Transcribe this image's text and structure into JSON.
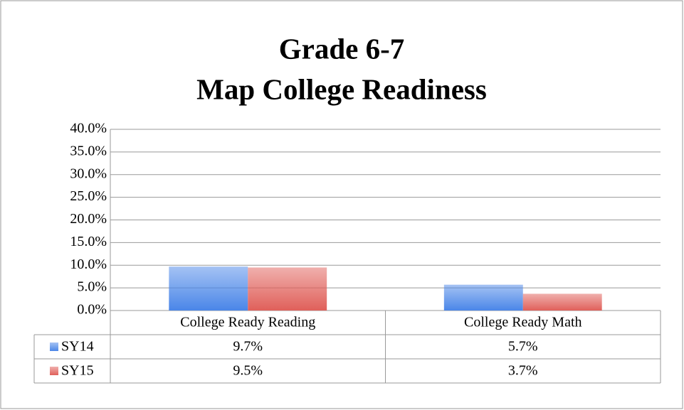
{
  "chart_data": {
    "type": "bar",
    "title": [
      "Grade 6-7",
      "Map College Readiness"
    ],
    "categories": [
      "College Ready Reading",
      "College Ready Math"
    ],
    "series": [
      {
        "name": "SY14",
        "color": "#4a86e8",
        "values": [
          9.7,
          5.7
        ],
        "value_labels": [
          "9.7%",
          "5.7%"
        ]
      },
      {
        "name": "SY15",
        "color": "#e0605a",
        "values": [
          9.5,
          3.7
        ],
        "value_labels": [
          "9.5%",
          "3.7%"
        ]
      }
    ],
    "ylim": [
      0,
      40
    ],
    "yticks": [
      {
        "value": 0,
        "label": "0.0%"
      },
      {
        "value": 5,
        "label": "5.0%"
      },
      {
        "value": 10,
        "label": "10.0%"
      },
      {
        "value": 15,
        "label": "15.0%"
      },
      {
        "value": 20,
        "label": "20.0%"
      },
      {
        "value": 25,
        "label": "25.0%"
      },
      {
        "value": 30,
        "label": "30.0%"
      },
      {
        "value": 35,
        "label": "35.0%"
      },
      {
        "value": 40,
        "label": "40.0%"
      }
    ],
    "grid": true,
    "data_table": true
  }
}
